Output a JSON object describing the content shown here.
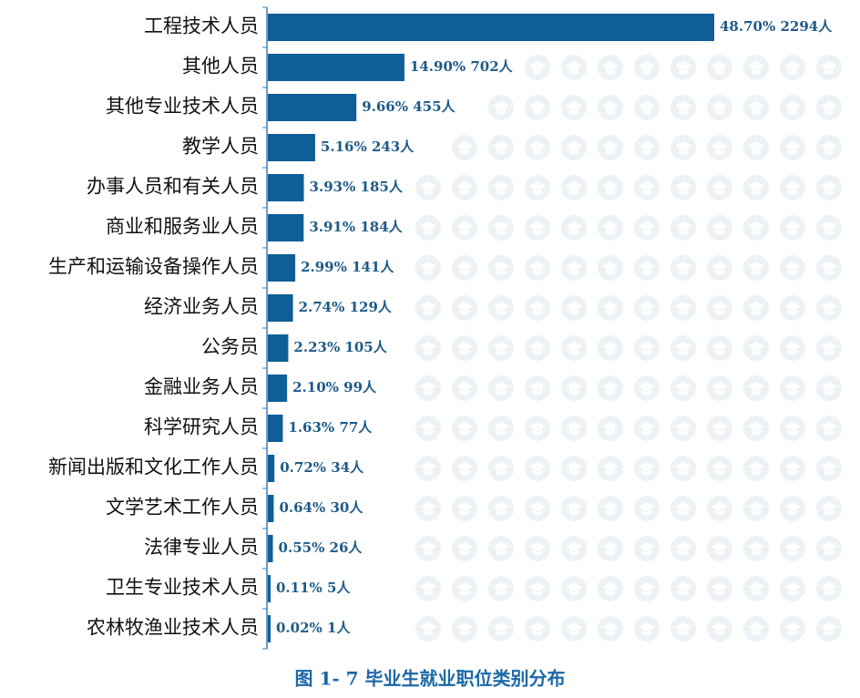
{
  "chart_data": {
    "type": "barh",
    "caption": "图 1- 7 毕业生就业职位类别分布",
    "categories": [
      "工程技术人员",
      "其他人员",
      "其他专业技术人员",
      "教学人员",
      "办事人员和有关人员",
      "商业和服务业人员",
      "生产和运输设备操作人员",
      "经济业务人员",
      "公务员",
      "金融业务人员",
      "科学研究人员",
      "新闻出版和文化工作人员",
      "文学艺术工作人员",
      "法律专业人员",
      "卫生专业技术人员",
      "农林牧渔业技术人员"
    ],
    "values": [
      48.7,
      14.9,
      9.66,
      5.16,
      3.93,
      3.91,
      2.99,
      2.74,
      2.23,
      2.1,
      1.63,
      0.72,
      0.64,
      0.55,
      0.11,
      0.02
    ],
    "value_labels": [
      "48.70% 2294人",
      "14.90% 702人",
      "9.66% 455人",
      "5.16% 243人",
      "3.93% 185人",
      "3.91% 184人",
      "2.99% 141人",
      "2.74% 129人",
      "2.23% 105人",
      "2.10% 99人",
      "1.63% 77人",
      "0.72% 34人",
      "0.64% 30人",
      "0.55% 26人",
      "0.11% 5人",
      "0.02% 1人"
    ],
    "color": "#0f5e97"
  }
}
